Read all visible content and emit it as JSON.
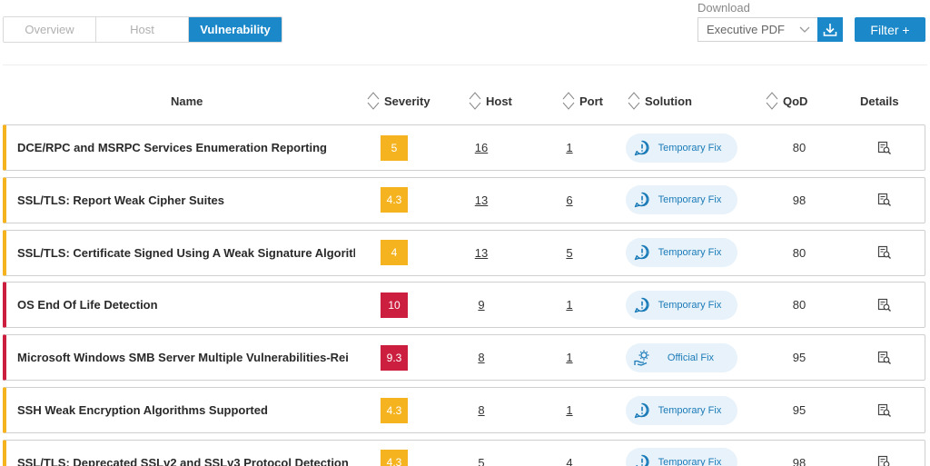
{
  "tabs": [
    {
      "label": "Overview",
      "active": false
    },
    {
      "label": "Host",
      "active": false
    },
    {
      "label": "Vulnerability",
      "active": true
    }
  ],
  "download": {
    "label": "Download",
    "selected": "Executive PDF"
  },
  "filter_label": "Filter +",
  "columns": {
    "name": "Name",
    "severity": "Severity",
    "host": "Host",
    "port": "Port",
    "solution": "Solution",
    "qod": "QoD",
    "details": "Details"
  },
  "colors": {
    "accent": "#1a88c9",
    "medium": "#f5b320",
    "critical": "#cc1f3f",
    "pill_bg": "#e8f2fa"
  },
  "rows": [
    {
      "name": "DCE/RPC and MSRPC Services Enumeration Reporting",
      "severity": "5",
      "host": "16",
      "port": "1",
      "solution": "Temporary Fix",
      "solution_icon": "speech-bubble-icon",
      "qod": "80",
      "level": "medium"
    },
    {
      "name": "SSL/TLS: Report Weak Cipher Suites",
      "severity": "4.3",
      "host": "13",
      "port": "6",
      "solution": "Temporary Fix",
      "solution_icon": "speech-bubble-icon",
      "qod": "98",
      "level": "medium"
    },
    {
      "name": "SSL/TLS: Certificate Signed Using A Weak Signature Algorith",
      "severity": "4",
      "host": "13",
      "port": "5",
      "solution": "Temporary Fix",
      "solution_icon": "speech-bubble-icon",
      "qod": "80",
      "level": "medium"
    },
    {
      "name": "OS End Of Life Detection",
      "severity": "10",
      "host": "9",
      "port": "1",
      "solution": "Temporary Fix",
      "solution_icon": "speech-bubble-icon",
      "qod": "80",
      "level": "critical"
    },
    {
      "name": "Microsoft Windows SMB Server Multiple Vulnerabilities-Rei",
      "severity": "9.3",
      "host": "8",
      "port": "1",
      "solution": "Official Fix",
      "solution_icon": "gear-hand-icon",
      "qod": "95",
      "level": "critical"
    },
    {
      "name": "SSH Weak Encryption Algorithms Supported",
      "severity": "4.3",
      "host": "8",
      "port": "1",
      "solution": "Temporary Fix",
      "solution_icon": "speech-bubble-icon",
      "qod": "95",
      "level": "medium"
    },
    {
      "name": "SSL/TLS: Deprecated SSLv2 and SSLv3 Protocol Detection",
      "severity": "4.3",
      "host": "5",
      "port": "4",
      "solution": "Temporary Fix",
      "solution_icon": "speech-bubble-icon",
      "qod": "98",
      "level": "medium"
    }
  ]
}
